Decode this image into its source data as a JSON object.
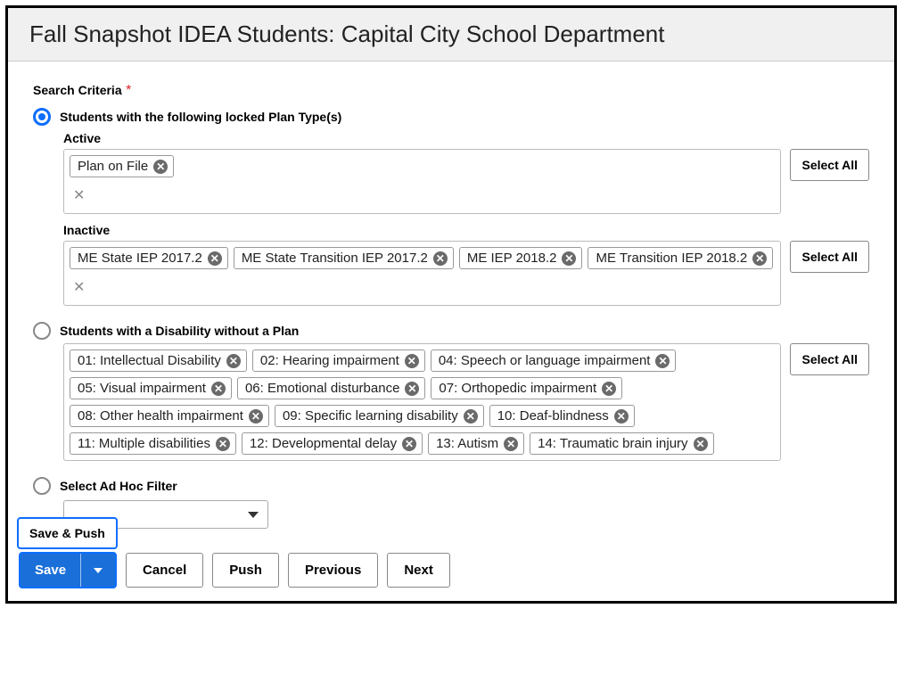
{
  "header": {
    "title": "Fall Snapshot IDEA Students: Capital City School Department"
  },
  "criteria": {
    "label": "Search Criteria",
    "required_marker": "*",
    "option1": {
      "label": "Students with the following locked Plan Type(s)",
      "active_label": "Active",
      "inactive_label": "Inactive",
      "active_tags": [
        "Plan on File"
      ],
      "inactive_tags": [
        "ME State IEP 2017.2",
        "ME State Transition IEP 2017.2",
        "ME IEP 2018.2",
        "ME Transition IEP 2018.2"
      ]
    },
    "option2": {
      "label": "Students with a Disability without a Plan",
      "tags": [
        "01: Intellectual Disability",
        "02: Hearing impairment",
        "04: Speech or language impairment",
        "05: Visual impairment",
        "06: Emotional disturbance",
        "07: Orthopedic impairment",
        "08: Other health impairment",
        "09: Specific learning disability",
        "10: Deaf-blindness",
        "11: Multiple disabilities",
        "12: Developmental delay",
        "13: Autism",
        "14: Traumatic brain injury"
      ]
    },
    "option3": {
      "label": "Select Ad Hoc Filter"
    },
    "select_all_label": "Select All"
  },
  "footer": {
    "save_push": "Save & Push",
    "save": "Save",
    "cancel": "Cancel",
    "push": "Push",
    "previous": "Previous",
    "next": "Next"
  }
}
